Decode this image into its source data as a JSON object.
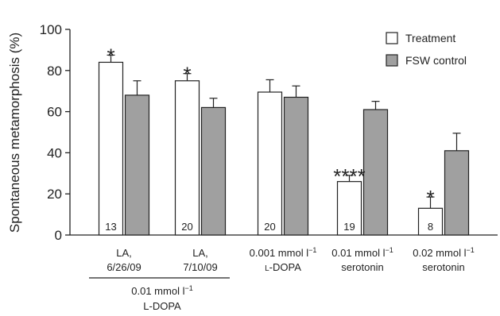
{
  "chart_data": {
    "type": "bar",
    "ylabel": "Spontaneous metamorphosis (%)",
    "ylim": [
      0,
      100
    ],
    "yticks": [
      "0",
      "20",
      "40",
      "60",
      "80",
      "100"
    ],
    "categories": [
      {
        "line1": "LA,",
        "line2": "6/26/09"
      },
      {
        "line1": "LA,",
        "line2": "7/10/09"
      },
      {
        "line1": "0.001 mmol l",
        "line1_sup": "−1",
        "line2_first": "L",
        "line2_rest": "-DOPA"
      },
      {
        "line1": "0.01 mmol l",
        "line1_sup": "−1",
        "line2": "serotonin"
      },
      {
        "line1": "0.02 mmol l",
        "line1_sup": "−1",
        "line2": "serotonin"
      }
    ],
    "group_label": {
      "line1": "0.01 mmol l",
      "line1_sup": "−1",
      "line2": "L-DOPA"
    },
    "series": [
      {
        "name": "Treatment",
        "values": [
          84,
          75,
          69.5,
          26,
          13
        ],
        "errors": [
          3.5,
          3.5,
          6,
          3,
          5.5
        ],
        "color": "#ffffff"
      },
      {
        "name": "FSW control",
        "values": [
          68,
          62,
          67,
          61,
          41
        ],
        "errors": [
          7,
          4.5,
          5.5,
          4,
          8.5
        ],
        "color": "#a0a0a0"
      }
    ],
    "counts": [
      "13",
      "20",
      "20",
      "19",
      "8"
    ],
    "significance": [
      "*",
      "*",
      "",
      "****",
      "*"
    ],
    "legend_position": "top-right",
    "grid": false
  }
}
